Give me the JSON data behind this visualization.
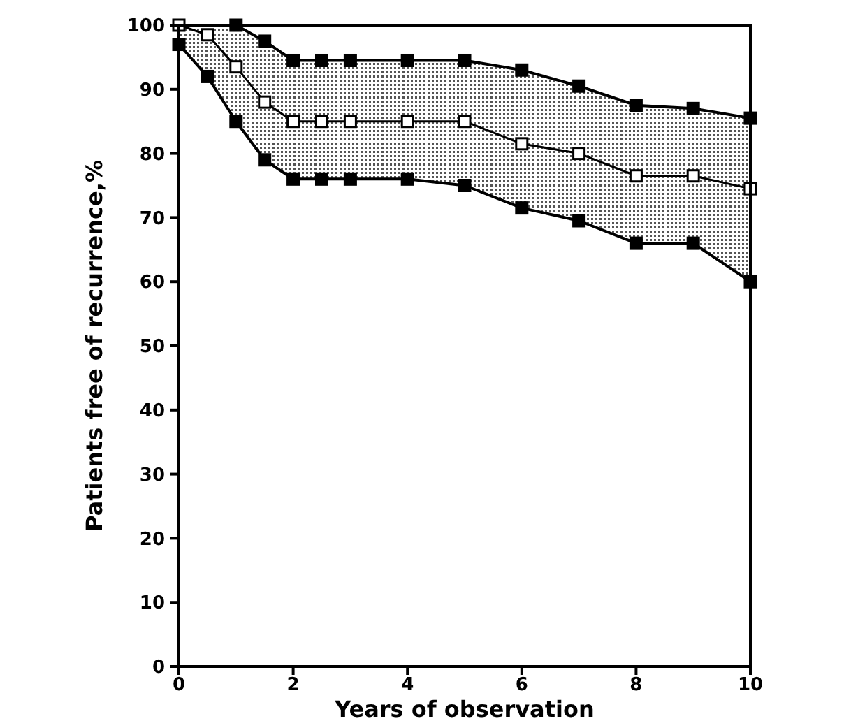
{
  "chart_data": {
    "type": "line",
    "xlabel": "Years of observation",
    "ylabel": "Patients free of recurrence,%",
    "x": [
      0,
      0.5,
      1,
      1.5,
      2,
      2.5,
      3,
      4,
      5,
      6,
      7,
      8,
      9,
      10
    ],
    "series": [
      {
        "color": "#000000",
        "x": [
          1,
          1.5,
          2,
          2.5,
          3,
          4,
          5,
          6,
          7,
          8,
          9,
          10
        ],
        "values": [
          100,
          97.5,
          94.5,
          94.5,
          94.5,
          94.5,
          94.5,
          93,
          90.5,
          87.5,
          87,
          85.5
        ]
      },
      {
        "color": "#000000",
        "values": [
          100,
          98.5,
          93.5,
          88,
          85,
          85,
          85,
          85,
          85,
          81.5,
          80,
          76.5,
          76.5,
          74.5
        ],
        "lower": [
          97,
          92,
          85,
          79,
          76,
          76,
          76,
          76,
          75,
          71.5,
          69.5,
          66,
          66,
          60
        ],
        "upper": [
          100,
          100,
          100,
          97.5,
          94.5,
          94.5,
          94.5,
          94.5,
          94.5,
          93,
          90.5,
          87.5,
          87,
          85.5
        ]
      },
      {
        "color": "#000000",
        "values": [
          97,
          92,
          85,
          79,
          76,
          76,
          76,
          76,
          75,
          71.5,
          69.5,
          66,
          66,
          60
        ]
      }
    ],
    "xlim": [
      0,
      10
    ],
    "xticks": [
      0,
      2,
      4,
      6,
      8,
      10
    ],
    "ylim": [
      0,
      100
    ],
    "yticks": [
      0,
      10,
      20,
      30,
      40,
      50,
      60,
      70,
      80,
      90,
      100
    ],
    "grid": false,
    "marker": "square",
    "line_style": "solid"
  }
}
